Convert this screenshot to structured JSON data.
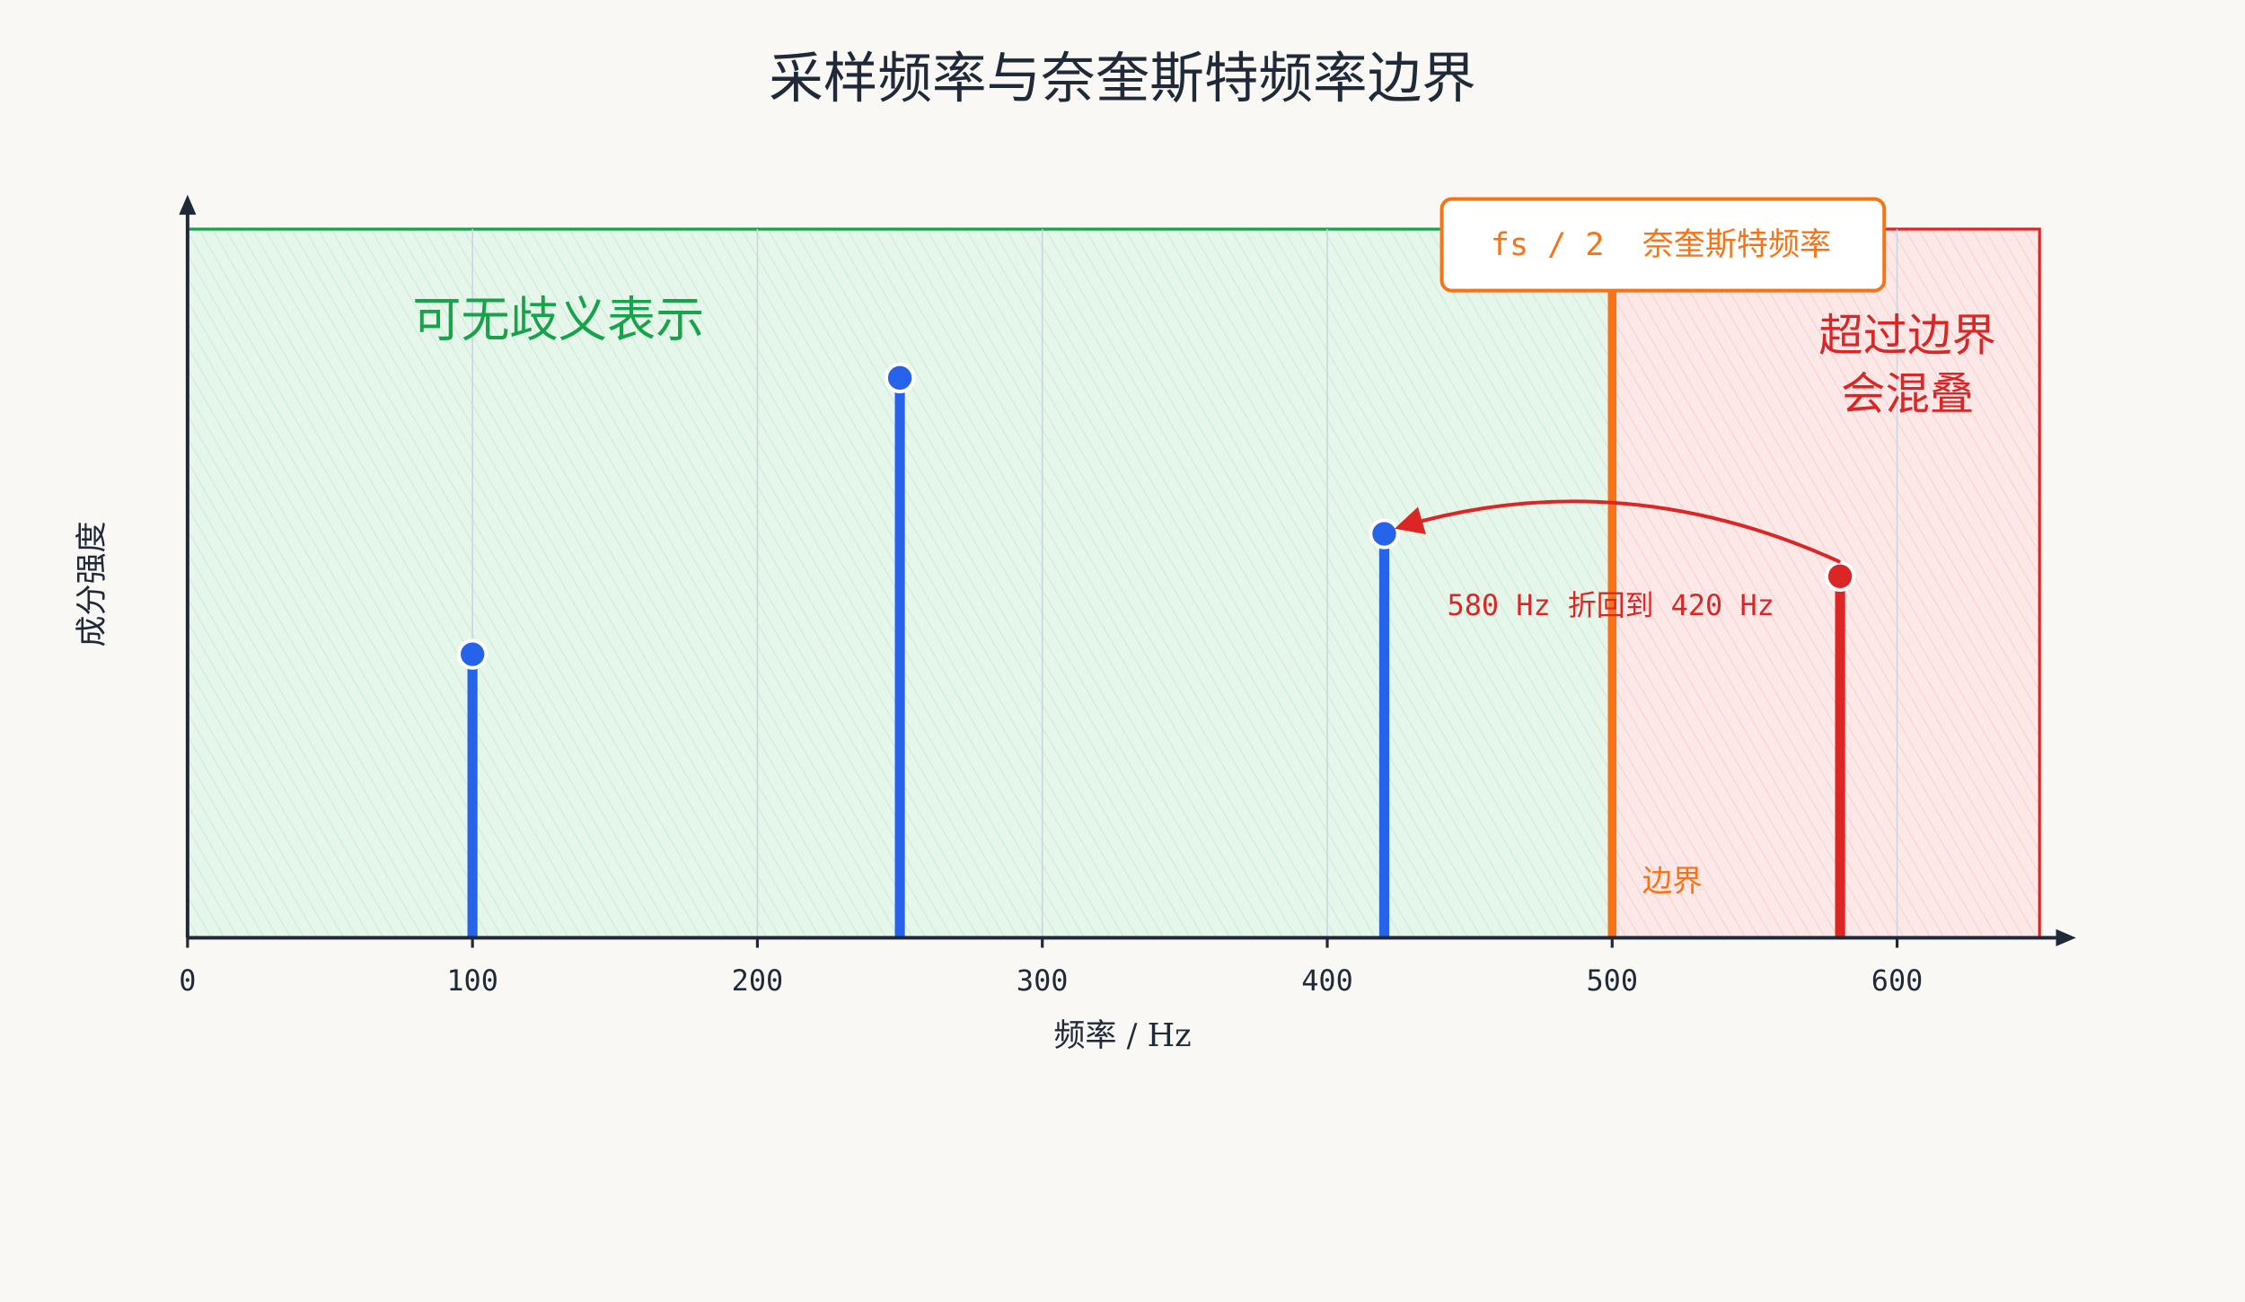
{
  "chart_data": {
    "type": "stem",
    "title": "采样频率与奈奎斯特频率边界",
    "x_label": "频率 / Hz",
    "y_label": "成分强度",
    "x": [
      100,
      250,
      420,
      580
    ],
    "values": [
      0.4,
      0.79,
      0.57,
      0.51
    ],
    "point_colors": [
      "#2563eb",
      "#2563eb",
      "#2563eb",
      "#dc2626"
    ],
    "xlim": [
      0,
      650
    ],
    "ylim": [
      0,
      1
    ],
    "xticks": [
      0,
      100,
      200,
      300,
      400,
      500,
      600
    ],
    "grid": true,
    "nyquist": {
      "x": 500,
      "label": "fs / 2  奈奎斯特频率",
      "sub_label": "边界",
      "color": "#f97316"
    },
    "safe_region": {
      "label": "可无歧义表示",
      "color": "#16a34a"
    },
    "alias_region": {
      "lines": [
        "超过边界",
        "会混叠"
      ],
      "color": "#dc2626"
    },
    "alias": {
      "from": 580,
      "to": 420,
      "label": "580 Hz 折回到 420 Hz",
      "color": "#dc2626"
    }
  }
}
